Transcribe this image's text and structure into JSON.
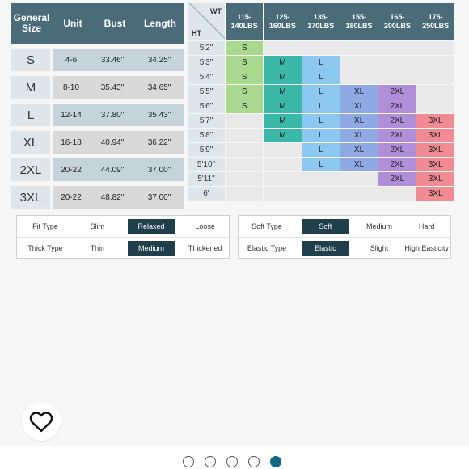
{
  "size_chart": {
    "headers": [
      "General Size",
      "Unit",
      "Bust",
      "Length"
    ],
    "rows": [
      {
        "size": "S",
        "unit": "4-6",
        "bust": "33.46\"",
        "length": "34.25\""
      },
      {
        "size": "M",
        "unit": "8-10",
        "bust": "35.43\"",
        "length": "34.65\""
      },
      {
        "size": "L",
        "unit": "12-14",
        "bust": "37.80\"",
        "length": "35.43\""
      },
      {
        "size": "XL",
        "unit": "16-18",
        "bust": "40.94\"",
        "length": "36.22\""
      },
      {
        "size": "2XL",
        "unit": "20-22",
        "bust": "44.09\"",
        "length": "37.00\""
      },
      {
        "size": "3XL",
        "unit": "20-22",
        "bust": "48.82\"",
        "length": "37.00\""
      }
    ]
  },
  "weight_height": {
    "wt_label": "WT",
    "ht_label": "HT",
    "columns": [
      "115-140LBS",
      "125-160LBS",
      "135-170LBS",
      "155-180LBS",
      "165-200LBS",
      "175-250LBS"
    ],
    "heights": [
      "5'2\"",
      "5'3\"",
      "5'4\"",
      "5'5\"",
      "5'6\"",
      "5'7\"",
      "5'8\"",
      "5'9\"",
      "5'10\"",
      "5'11\"",
      "6'"
    ],
    "grid": [
      [
        "S",
        "",
        "",
        "",
        "",
        ""
      ],
      [
        "S",
        "M",
        "L",
        "",
        "",
        ""
      ],
      [
        "S",
        "M",
        "L",
        "",
        "",
        ""
      ],
      [
        "S",
        "M",
        "L",
        "XL",
        "2XL",
        ""
      ],
      [
        "S",
        "M",
        "L",
        "XL",
        "2XL",
        ""
      ],
      [
        "",
        "M",
        "L",
        "XL",
        "2XL",
        "3XL"
      ],
      [
        "",
        "M",
        "L",
        "XL",
        "2XL",
        "3XL"
      ],
      [
        "",
        "",
        "L",
        "XL",
        "2XL",
        "3XL"
      ],
      [
        "",
        "",
        "L",
        "XL",
        "2XL",
        "3XL"
      ],
      [
        "",
        "",
        "",
        "",
        "2XL",
        "3XL"
      ],
      [
        "",
        "",
        "",
        "",
        "",
        "3XL"
      ]
    ],
    "size_colors": {
      "S": "#a9d98f",
      "M": "#3bb8a8",
      "L": "#8cc8ef",
      "XL": "#8fa9e3",
      "2XL": "#b18fd8",
      "3XL": "#f08b94"
    }
  },
  "attributes": {
    "left": [
      {
        "label": "Fit Type",
        "options": [
          "Slim",
          "Relaxed",
          "Loose"
        ],
        "selected": 1
      },
      {
        "label": "Thick Type",
        "options": [
          "Thin",
          "Medium",
          "Thickened"
        ],
        "selected": 1
      }
    ],
    "right": [
      {
        "label": "Soft Type",
        "options": [
          "Soft",
          "Medium",
          "Hard"
        ],
        "selected": 0
      },
      {
        "label": "Elastic Type",
        "options": [
          "Elastic",
          "Slight",
          "High Easticity"
        ],
        "selected": 0
      }
    ]
  },
  "favorite": {
    "icon": "heart-outline-icon"
  },
  "carousel": {
    "count": 5,
    "active": 4,
    "active_color": "#0f6a82"
  }
}
